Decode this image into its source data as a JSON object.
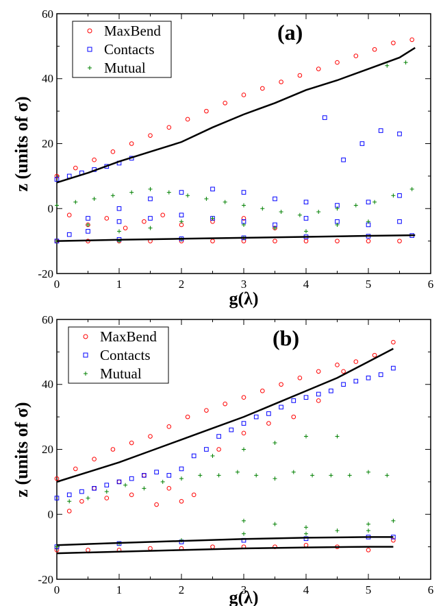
{
  "chart_data": [
    {
      "type": "scatter",
      "panel_label": "(a)",
      "xlabel": "g(λ)",
      "ylabel": "z (units of σ)",
      "xlim": [
        0,
        6
      ],
      "ylim": [
        -20,
        60
      ],
      "xticks": [
        "0",
        "1",
        "2",
        "3",
        "4",
        "5",
        "6"
      ],
      "yticks": [
        "-20",
        "0",
        "20",
        "40",
        "60"
      ],
      "legend_position": "top-left",
      "grid": false,
      "series": [
        {
          "name": "MaxBend",
          "marker": "circle",
          "color": "#ff0000",
          "x": [
            0.0,
            0.3,
            0.6,
            0.9,
            1.2,
            1.5,
            1.8,
            2.1,
            2.4,
            2.7,
            3.0,
            3.3,
            3.6,
            3.9,
            4.2,
            4.5,
            4.8,
            5.1,
            5.4,
            5.7,
            0.2,
            0.5,
            0.8,
            1.1,
            1.4,
            1.7,
            2.0,
            2.5,
            3.0,
            3.5,
            0.0,
            0.5,
            1.0,
            1.5,
            2.0,
            2.5,
            3.0,
            3.5,
            4.0,
            4.5,
            5.0,
            5.5
          ],
          "y": [
            10,
            12.5,
            15,
            17.5,
            20,
            22.5,
            25,
            27.5,
            30,
            32.5,
            35,
            37,
            39,
            41,
            43,
            45,
            47,
            49,
            51,
            52,
            -2,
            -5,
            -3,
            -6,
            -4,
            -2,
            -5,
            -4,
            -3,
            -6,
            -10,
            -10,
            -10,
            -10,
            -10,
            -10,
            -10,
            -10,
            -10,
            -10,
            -10,
            -10
          ]
        },
        {
          "name": "Contacts",
          "marker": "square",
          "color": "#0000ff",
          "x": [
            0.0,
            0.2,
            0.4,
            0.6,
            0.8,
            1.0,
            1.2,
            0.2,
            0.5,
            1.0,
            1.5,
            2.0,
            2.5,
            3.0,
            3.5,
            4.0,
            4.5,
            5.0,
            5.5,
            0.5,
            1.0,
            1.5,
            2.0,
            2.5,
            3.0,
            3.5,
            4.0,
            4.5,
            5.0,
            5.5,
            4.3,
            4.6,
            4.9,
            5.2,
            5.5,
            0.0,
            1.0,
            2.0,
            3.0,
            4.0,
            5.0,
            5.7
          ],
          "y": [
            9,
            10,
            11,
            12,
            13,
            14,
            15.5,
            -8,
            -3,
            0,
            3,
            5,
            6,
            5,
            3,
            2,
            1,
            2,
            4,
            -7,
            -4,
            -3,
            -2,
            -3,
            -4,
            -5,
            -3,
            -4,
            -5,
            -4,
            28,
            15,
            20,
            24,
            23,
            -10,
            -9.5,
            -9.3,
            -9,
            -8.7,
            -8.5,
            -8.3
          ]
        },
        {
          "name": "Mutual",
          "marker": "plus",
          "color": "#008000",
          "x": [
            0.0,
            0.3,
            0.6,
            0.9,
            1.2,
            1.5,
            1.8,
            2.1,
            2.4,
            2.7,
            3.0,
            3.3,
            3.6,
            3.9,
            4.2,
            4.5,
            4.8,
            5.1,
            5.4,
            5.7,
            0.5,
            1.0,
            1.5,
            2.0,
            2.5,
            3.0,
            3.5,
            4.0,
            4.5,
            5.0,
            5.3,
            5.6,
            0.0,
            1.0,
            2.0,
            3.0
          ],
          "y": [
            1,
            2,
            3,
            4,
            5,
            6,
            5,
            4,
            3,
            2,
            1,
            0,
            -1,
            -2,
            -1,
            0,
            1,
            2,
            4,
            6,
            -5,
            -7,
            -6,
            -4,
            -3,
            -5,
            -6,
            -7,
            -5,
            -4,
            44,
            45,
            -10,
            -10,
            -9.5,
            -9
          ]
        }
      ],
      "fit_lines": [
        {
          "x": [
            0,
            0.5,
            1,
            1.5,
            2,
            2.5,
            3,
            3.5,
            4,
            4.5,
            5,
            5.5,
            5.75
          ],
          "y": [
            8,
            11,
            14.5,
            17.5,
            20.5,
            25,
            29,
            32.5,
            36.5,
            39.5,
            43,
            46.5,
            49.5
          ]
        },
        {
          "x": [
            0,
            1,
            2,
            3,
            4,
            5,
            5.75
          ],
          "y": [
            -10,
            -9.6,
            -9.3,
            -9,
            -8.7,
            -8.4,
            -8.2
          ]
        }
      ]
    },
    {
      "type": "scatter",
      "panel_label": "(b)",
      "xlabel": "g(λ)",
      "ylabel": "z (units of σ)",
      "xlim": [
        0,
        6
      ],
      "ylim": [
        -20,
        60
      ],
      "xticks": [
        "0",
        "1",
        "2",
        "3",
        "4",
        "5",
        "6"
      ],
      "yticks": [
        "-20",
        "0",
        "20",
        "40",
        "60"
      ],
      "legend_position": "top-left",
      "grid": false,
      "series": [
        {
          "name": "MaxBend",
          "marker": "circle",
          "color": "#ff0000",
          "x": [
            0.0,
            0.3,
            0.6,
            0.9,
            1.2,
            1.5,
            1.8,
            2.1,
            2.4,
            2.7,
            3.0,
            3.3,
            3.6,
            3.9,
            4.2,
            4.5,
            4.8,
            5.1,
            5.4,
            0.2,
            0.4,
            0.6,
            0.8,
            1.0,
            1.2,
            1.4,
            1.6,
            1.8,
            2.0,
            2.2,
            2.6,
            3.0,
            3.4,
            3.8,
            4.2,
            4.6,
            0.0,
            0.5,
            1.0,
            1.5,
            2.0,
            2.5,
            3.0,
            3.5,
            4.0,
            4.5,
            5.0,
            5.4
          ],
          "y": [
            11,
            14,
            17,
            20,
            22,
            24,
            27,
            30,
            32,
            34,
            36,
            38,
            40,
            42,
            44,
            46,
            47,
            49,
            53,
            1,
            4,
            8,
            5,
            10,
            6,
            12,
            3,
            8,
            4,
            6,
            20,
            25,
            28,
            30,
            35,
            44,
            -11,
            -11,
            -11,
            -10.5,
            -10.5,
            -10,
            -10,
            -10,
            -9.5,
            -10,
            -11,
            -8
          ]
        },
        {
          "name": "Contacts",
          "marker": "square",
          "color": "#0000ff",
          "x": [
            0.0,
            0.2,
            0.4,
            0.6,
            0.8,
            1.0,
            1.2,
            1.4,
            1.6,
            1.8,
            2.0,
            2.2,
            2.4,
            2.6,
            2.8,
            3.0,
            3.2,
            3.4,
            3.6,
            3.8,
            4.0,
            4.2,
            4.4,
            4.6,
            4.8,
            5.0,
            5.2,
            5.4,
            0.0,
            1.0,
            2.0,
            3.0,
            4.0,
            5.0,
            5.4
          ],
          "y": [
            5,
            6,
            7,
            8,
            9,
            10,
            11,
            12,
            13,
            12,
            14,
            18,
            20,
            24,
            26,
            28,
            30,
            31,
            33,
            35,
            36,
            37,
            38,
            40,
            41,
            42,
            43,
            45,
            -10,
            -9,
            -8.5,
            -8,
            -7.5,
            -7,
            -7
          ]
        },
        {
          "name": "Mutual",
          "marker": "plus",
          "color": "#008000",
          "x": [
            0.2,
            0.5,
            0.8,
            1.1,
            1.4,
            1.7,
            2.0,
            2.3,
            2.6,
            2.9,
            3.2,
            3.5,
            3.8,
            4.1,
            4.4,
            4.7,
            5.0,
            5.3,
            3.0,
            3.5,
            4.0,
            4.5,
            5.0,
            5.4,
            2.5,
            3.0,
            3.5,
            4.0,
            4.5,
            0.0,
            1.0,
            2.0,
            3.0,
            4.0,
            5.0
          ],
          "y": [
            4,
            5,
            7,
            9,
            8,
            10,
            11,
            12,
            12,
            13,
            12,
            11,
            13,
            12,
            12,
            12,
            13,
            12,
            -2,
            -3,
            -4,
            -5,
            -3,
            -2,
            18,
            20,
            22,
            24,
            24,
            -10,
            -9,
            -8,
            -6,
            -6,
            -5
          ]
        }
      ],
      "fit_lines": [
        {
          "x": [
            0,
            0.5,
            1,
            1.5,
            2,
            2.5,
            3,
            3.5,
            4,
            4.5,
            5,
            5.4
          ],
          "y": [
            10,
            13,
            16,
            19.5,
            23,
            26.5,
            30,
            34,
            38,
            42,
            47,
            51
          ]
        },
        {
          "x": [
            0,
            1,
            2,
            3,
            4,
            5,
            5.4
          ],
          "y": [
            -9.5,
            -8.8,
            -8.2,
            -7.6,
            -7.2,
            -7,
            -7
          ]
        },
        {
          "x": [
            0,
            1,
            2,
            3,
            4,
            5,
            5.4
          ],
          "y": [
            -12,
            -11.5,
            -11,
            -10.5,
            -10.2,
            -10,
            -10
          ]
        }
      ]
    }
  ]
}
